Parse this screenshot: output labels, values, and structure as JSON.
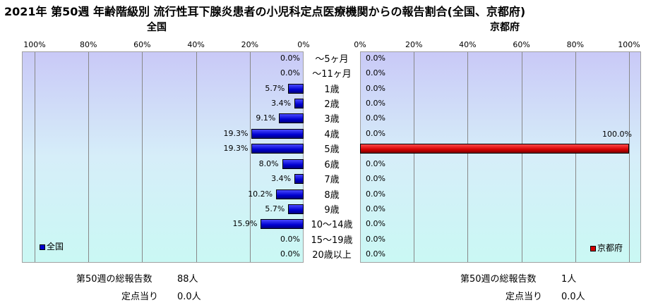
{
  "title": "2021年 第50週 年齢階級別 流行性耳下腺炎患者の小児科定点医療機関からの報告割合(全国、京都府)",
  "chart_data": {
    "type": "bar",
    "orientation": "horizontal",
    "categories": [
      "～5ヶ月",
      "～11ヶ月",
      "1歳",
      "2歳",
      "3歳",
      "4歳",
      "5歳",
      "6歳",
      "7歳",
      "8歳",
      "9歳",
      "10～14歳",
      "15～19歳",
      "20歳以上"
    ],
    "panels": [
      {
        "title": "全国",
        "direction": "left",
        "xlim": [
          0,
          100
        ],
        "ticks": [
          "100%",
          "80%",
          "60%",
          "40%",
          "20%",
          "0%"
        ],
        "series": [
          {
            "name": "全国",
            "color": "#0000d0",
            "values": [
              0.0,
              0.0,
              5.7,
              3.4,
              9.1,
              19.3,
              19.3,
              8.0,
              3.4,
              10.2,
              5.7,
              15.9,
              0.0,
              0.0
            ],
            "labels": [
              "0.0%",
              "0.0%",
              "5.7%",
              "3.4%",
              "9.1%",
              "19.3%",
              "19.3%",
              "8.0%",
              "3.4%",
              "10.2%",
              "5.7%",
              "15.9%",
              "0.0%",
              "0.0%"
            ]
          }
        ],
        "legend": "bottom-left"
      },
      {
        "title": "京都府",
        "direction": "right",
        "xlim": [
          0,
          100
        ],
        "ticks": [
          "0%",
          "20%",
          "40%",
          "60%",
          "80%",
          "100%"
        ],
        "series": [
          {
            "name": "京都府",
            "color": "#d40000",
            "values": [
              0.0,
              0.0,
              0.0,
              0.0,
              0.0,
              0.0,
              100.0,
              0.0,
              0.0,
              0.0,
              0.0,
              0.0,
              0.0,
              0.0
            ],
            "labels": [
              "0.0%",
              "0.0%",
              "0.0%",
              "0.0%",
              "0.0%",
              "0.0%",
              "100.0%",
              "0.0%",
              "0.0%",
              "0.0%",
              "0.0%",
              "0.0%",
              "0.0%",
              "0.0%"
            ]
          }
        ],
        "legend": "bottom-right"
      }
    ],
    "grid": true
  },
  "footer": {
    "zenkoku": {
      "total_label": "第50週の総報告数",
      "total_value": "88人",
      "per_label": "定点当り",
      "per_value": "0.0人"
    },
    "kyoto": {
      "total_label": "第50週の総報告数",
      "total_value": "1人",
      "per_label": "定点当り",
      "per_value": "0.0人"
    }
  }
}
